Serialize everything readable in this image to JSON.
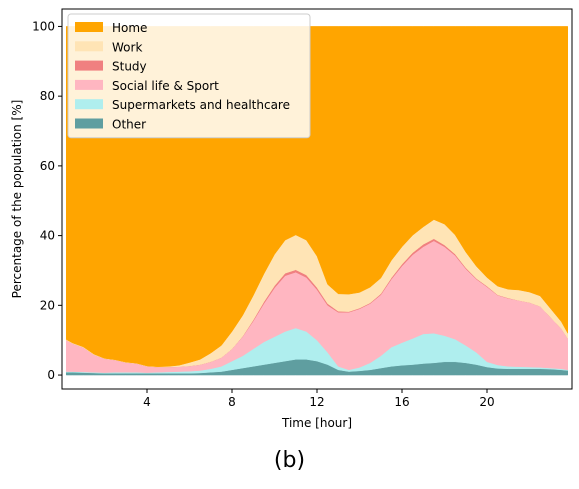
{
  "chart_data": {
    "type": "area",
    "stacked": true,
    "title": "",
    "xlabel": "Time [hour]",
    "ylabel": "Percentage of the population [%]",
    "xlim": [
      0,
      24
    ],
    "ylim": [
      -4,
      105
    ],
    "xticks": [
      4,
      8,
      12,
      16,
      20
    ],
    "yticks": [
      0,
      20,
      40,
      60,
      80,
      100
    ],
    "grid": false,
    "legend_position": "top-left",
    "x": [
      0.2,
      0.5,
      1,
      1.5,
      2,
      2.5,
      3,
      3.5,
      4,
      4.5,
      5,
      5.5,
      6,
      6.5,
      7,
      7.5,
      8,
      8.5,
      9,
      9.5,
      10,
      10.5,
      11,
      11.5,
      12,
      12.5,
      13,
      13.5,
      14,
      14.5,
      15,
      15.5,
      16,
      16.5,
      17,
      17.5,
      18,
      18.5,
      19,
      19.5,
      20,
      20.5,
      21,
      21.5,
      22,
      22.5,
      23,
      23.5,
      23.8
    ],
    "series": [
      {
        "name": "Other",
        "color": "#5f9ea0",
        "values": [
          0.8,
          0.8,
          0.7,
          0.6,
          0.5,
          0.5,
          0.5,
          0.5,
          0.5,
          0.5,
          0.5,
          0.5,
          0.5,
          0.6,
          0.8,
          1.0,
          1.5,
          2.0,
          2.5,
          3.0,
          3.5,
          4.0,
          4.5,
          4.5,
          4.0,
          3.0,
          1.5,
          1.0,
          1.2,
          1.5,
          2.0,
          2.5,
          2.8,
          3.0,
          3.3,
          3.5,
          3.8,
          3.8,
          3.5,
          3.0,
          2.3,
          1.9,
          1.8,
          1.8,
          1.8,
          1.8,
          1.7,
          1.5,
          1.3
        ]
      },
      {
        "name": "Supermarkets and healthcare",
        "color": "#afeeee",
        "values": [
          0.2,
          0.2,
          0.2,
          0.2,
          0.2,
          0.3,
          0.3,
          0.3,
          0.2,
          0.3,
          0.4,
          0.5,
          0.6,
          0.7,
          1.0,
          1.5,
          2.5,
          3.5,
          5.0,
          6.5,
          7.5,
          8.5,
          9.0,
          8.0,
          6.0,
          3.5,
          1.0,
          0.5,
          1.0,
          2.0,
          3.5,
          5.5,
          6.5,
          7.5,
          8.5,
          8.5,
          7.5,
          6.5,
          5.0,
          3.5,
          1.5,
          1.0,
          0.7,
          0.6,
          0.5,
          0.4,
          0.3,
          0.3,
          0.2
        ]
      },
      {
        "name": "Social life & Sport",
        "color": "#ffb6c1",
        "values": [
          9.0,
          8.0,
          7.0,
          5.0,
          4.0,
          3.5,
          2.8,
          2.5,
          1.8,
          1.5,
          1.4,
          1.4,
          1.5,
          1.7,
          2.0,
          2.5,
          3.5,
          5.5,
          8.0,
          11.0,
          14.0,
          16.0,
          16.0,
          15.5,
          14.5,
          13.5,
          15.5,
          16.5,
          16.8,
          17.0,
          17.5,
          19.5,
          22.0,
          24.0,
          25.0,
          26.5,
          25.5,
          24.0,
          22.0,
          21.0,
          21.5,
          20.0,
          19.5,
          19.0,
          18.5,
          17.5,
          14.5,
          11.5,
          9.0
        ]
      },
      {
        "name": "Study",
        "color": "#f08080",
        "values": [
          0,
          0,
          0,
          0,
          0,
          0,
          0,
          0,
          0,
          0,
          0,
          0,
          0,
          0,
          0,
          0,
          0,
          0.1,
          0.3,
          0.5,
          0.6,
          0.7,
          0.7,
          0.7,
          0.6,
          0.5,
          0.3,
          0.2,
          0.2,
          0.2,
          0.3,
          0.4,
          0.5,
          0.6,
          0.7,
          0.6,
          0.5,
          0.4,
          0.3,
          0.2,
          0.2,
          0.1,
          0.1,
          0,
          0,
          0,
          0,
          0,
          0
        ]
      },
      {
        "name": "Work",
        "color": "#ffe4b5",
        "values": [
          0.2,
          0.2,
          0.2,
          0.2,
          0.1,
          0.1,
          0.1,
          0.1,
          0.1,
          0.1,
          0.2,
          0.4,
          1.0,
          1.5,
          2.5,
          3.5,
          5.0,
          6.0,
          7.0,
          8.0,
          9.0,
          9.5,
          10.0,
          10.0,
          9.0,
          5.5,
          5.0,
          5.0,
          4.5,
          4.5,
          4.5,
          5.0,
          5.0,
          5.0,
          5.0,
          5.5,
          6.0,
          5.5,
          4.5,
          3.5,
          2.5,
          2.5,
          2.5,
          3.0,
          3.0,
          3.0,
          2.5,
          2.0,
          1.5
        ]
      },
      {
        "name": "Home",
        "color": "#ffa500",
        "values": [
          89.8,
          90.8,
          91.9,
          94.0,
          95.2,
          95.6,
          96.3,
          96.6,
          97.4,
          97.6,
          97.5,
          97.2,
          96.4,
          95.5,
          93.7,
          91.5,
          87.5,
          82.9,
          77.2,
          71.0,
          65.4,
          61.3,
          59.8,
          61.3,
          65.9,
          74.0,
          76.7,
          76.8,
          76.3,
          74.8,
          72.2,
          67.1,
          63.2,
          59.9,
          57.5,
          55.4,
          56.7,
          59.8,
          64.7,
          68.8,
          72.0,
          74.5,
          75.4,
          75.6,
          76.2,
          77.3,
          81.0,
          84.7,
          88.0
        ]
      }
    ],
    "legend": [
      {
        "label": "Home",
        "color": "#ffa500"
      },
      {
        "label": "Work",
        "color": "#ffe4b5"
      },
      {
        "label": "Study",
        "color": "#f08080"
      },
      {
        "label": "Social life & Sport",
        "color": "#ffb6c1"
      },
      {
        "label": "Supermarkets and healthcare",
        "color": "#afeeee"
      },
      {
        "label": "Other",
        "color": "#5f9ea0"
      }
    ]
  },
  "panel_label": "(b)"
}
